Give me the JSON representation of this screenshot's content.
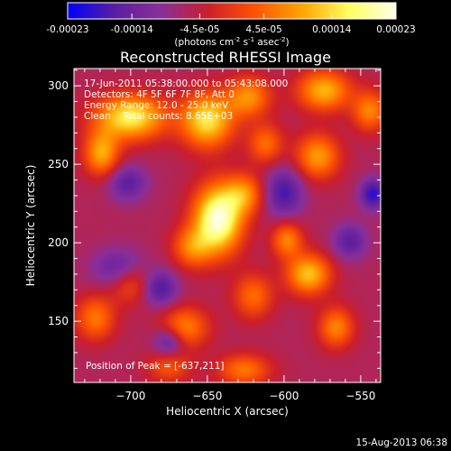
{
  "chart_data": {
    "type": "heatmap",
    "title": "Reconstructed RHESSI Image",
    "xlabel": "Heliocentric X (arcsec)",
    "ylabel": "Heliocentric Y (arcsec)",
    "xlim": [
      -737,
      -537
    ],
    "ylim": [
      111,
      311
    ],
    "xticks": [
      -700,
      -650,
      -600,
      -550
    ],
    "yticks": [
      150,
      200,
      250,
      300
    ],
    "colorbar": {
      "range": [
        -0.00023,
        0.00023
      ],
      "tick_values": [
        -0.00023,
        -0.00014,
        -4.5e-05,
        4.5e-05,
        0.00014,
        0.00023
      ],
      "tick_labels": [
        "-0.00023",
        "-0.00014",
        "-4.5e-05",
        "4.5e-05",
        "0.00014",
        "0.00023"
      ],
      "unit_prefix": "(photons cm",
      "unit_exp1": "-2",
      "unit_mid": " s",
      "unit_exp2": "-1",
      "unit_mid2": " asec",
      "unit_exp3": "-2",
      "unit_suffix": ")",
      "colormap": [
        "#0000ff",
        "#5a1ea0",
        "#8a2f9a",
        "#cc1e2a",
        "#ff5500",
        "#ffa500",
        "#ffff60",
        "#ffffe8"
      ]
    },
    "annotations": [
      "17-Jun-2011 05:38:00.000 to 05:43:08.000",
      "Detectors: 4F 5F 6F 7F 8F, Att 0",
      "Energy Range: 12.0 - 25.0 keV",
      "Clean    Total counts: 8.65E+03"
    ],
    "peak_label": "Position of Peak = [-637,211]",
    "peak": [
      -637,
      211
    ],
    "background_level": -6e-05,
    "blobs": [
      {
        "x": -643,
        "y": 215,
        "amp": 0.000285,
        "sx": 11,
        "sy": 15
      },
      {
        "x": -626,
        "y": 231,
        "amp": 0.00013,
        "sx": 9,
        "sy": 9
      },
      {
        "x": -660,
        "y": 197,
        "amp": 0.00012,
        "sx": 9,
        "sy": 9
      },
      {
        "x": -700,
        "y": 280,
        "amp": 0.00022,
        "sx": 16,
        "sy": 10
      },
      {
        "x": -719,
        "y": 257,
        "amp": 0.00016,
        "sx": 8,
        "sy": 10
      },
      {
        "x": -650,
        "y": 278,
        "amp": 0.00021,
        "sx": 12,
        "sy": 12
      },
      {
        "x": -623,
        "y": 293,
        "amp": 0.00014,
        "sx": 10,
        "sy": 9
      },
      {
        "x": -612,
        "y": 263,
        "amp": 0.00011,
        "sx": 8,
        "sy": 9
      },
      {
        "x": -574,
        "y": 297,
        "amp": 0.00017,
        "sx": 12,
        "sy": 9
      },
      {
        "x": -578,
        "y": 255,
        "amp": 0.00015,
        "sx": 10,
        "sy": 10
      },
      {
        "x": -544,
        "y": 284,
        "amp": 0.00013,
        "sx": 8,
        "sy": 9
      },
      {
        "x": -584,
        "y": 180,
        "amp": 0.00018,
        "sx": 10,
        "sy": 9
      },
      {
        "x": -598,
        "y": 202,
        "amp": 0.00013,
        "sx": 7,
        "sy": 8
      },
      {
        "x": -566,
        "y": 146,
        "amp": 0.00013,
        "sx": 8,
        "sy": 9
      },
      {
        "x": -620,
        "y": 166,
        "amp": 0.00011,
        "sx": 9,
        "sy": 10
      },
      {
        "x": -665,
        "y": 146,
        "amp": 0.00013,
        "sx": 11,
        "sy": 9
      },
      {
        "x": -700,
        "y": 175,
        "amp": 0.00011,
        "sx": 10,
        "sy": 9
      },
      {
        "x": -723,
        "y": 152,
        "amp": 0.00012,
        "sx": 9,
        "sy": 10
      },
      {
        "x": -626,
        "y": 119,
        "amp": 0.00012,
        "sx": 12,
        "sy": 7
      },
      {
        "x": -675,
        "y": 121,
        "amp": 9e-05,
        "sx": 10,
        "sy": 7
      },
      {
        "x": -707,
        "y": 183,
        "amp": -0.00011,
        "sx": 12,
        "sy": 9
      },
      {
        "x": -681,
        "y": 171,
        "amp": -0.00012,
        "sx": 8,
        "sy": 8
      },
      {
        "x": -675,
        "y": 137,
        "amp": -0.00011,
        "sx": 7,
        "sy": 7
      },
      {
        "x": -542,
        "y": 231,
        "amp": -0.00014,
        "sx": 6,
        "sy": 7
      },
      {
        "x": -600,
        "y": 232,
        "amp": -0.00012,
        "sx": 9,
        "sy": 11
      },
      {
        "x": -557,
        "y": 201,
        "amp": -0.0001,
        "sx": 8,
        "sy": 8
      },
      {
        "x": -702,
        "y": 238,
        "amp": -0.0001,
        "sx": 9,
        "sy": 8
      }
    ]
  },
  "footer": {
    "timestamp": "15-Aug-2013 06:38"
  }
}
